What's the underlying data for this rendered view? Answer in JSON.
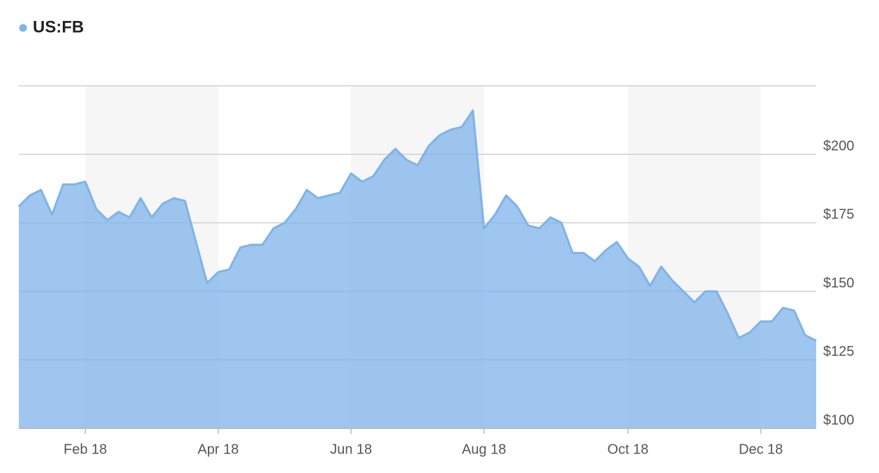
{
  "chart_data": {
    "type": "area",
    "categories": [
      null,
      null,
      null,
      null,
      null,
      null,
      "Feb 18",
      null,
      null,
      null,
      null,
      null,
      null,
      null,
      null,
      null,
      null,
      null,
      "Apr 18",
      null,
      null,
      null,
      null,
      null,
      null,
      null,
      null,
      null,
      null,
      null,
      "Jun 18",
      null,
      null,
      null,
      null,
      null,
      null,
      null,
      null,
      null,
      null,
      null,
      "Aug 18",
      null,
      null,
      null,
      null,
      null,
      null,
      null,
      null,
      null,
      null,
      null,
      null,
      "Oct 18",
      null,
      null,
      null,
      null,
      null,
      null,
      null,
      null,
      null,
      null,
      null,
      "Dec 18",
      null,
      null,
      null,
      null,
      null
    ],
    "series": [
      {
        "name": "US:FB",
        "color": "#7eb3ea",
        "values": [
          181,
          185,
          187,
          178,
          189,
          189,
          190,
          180,
          176,
          179,
          177,
          184,
          177,
          182,
          184,
          183,
          168,
          153,
          157,
          158,
          166,
          167,
          167,
          173,
          175,
          180,
          187,
          184,
          185,
          186,
          193,
          190,
          192,
          198,
          202,
          198,
          196,
          203,
          207,
          209,
          210,
          216,
          173,
          178,
          185,
          181,
          174,
          173,
          177,
          175,
          164,
          164,
          161,
          165,
          168,
          162,
          159,
          152,
          159,
          154,
          150,
          146,
          150,
          150,
          142,
          133,
          135,
          139,
          139,
          144,
          143,
          134,
          132
        ]
      }
    ],
    "ylim": [
      100,
      225
    ],
    "yticks": [
      {
        "value": 100,
        "label": "$100"
      },
      {
        "value": 125,
        "label": "$125"
      },
      {
        "value": 150,
        "label": "$150"
      },
      {
        "value": 175,
        "label": "$175"
      },
      {
        "value": 200,
        "label": "$200"
      }
    ],
    "grid": true
  }
}
